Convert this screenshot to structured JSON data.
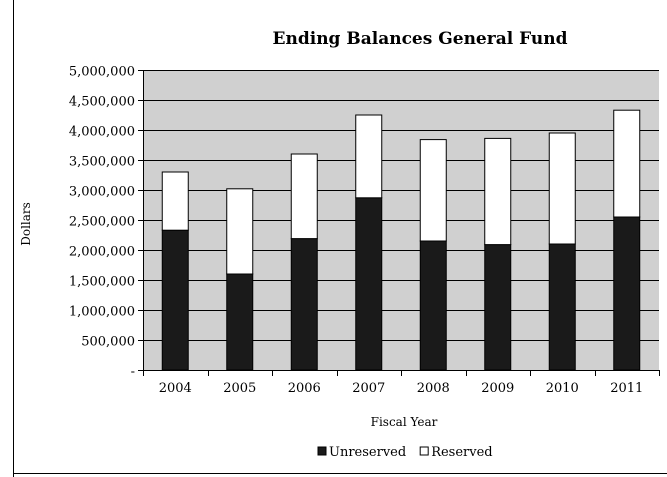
{
  "chart_data": {
    "type": "bar",
    "stacked": true,
    "title": "Ending Balances General Fund",
    "xlabel": "Fiscal Year",
    "ylabel": "Dollars",
    "categories": [
      "2004",
      "2005",
      "2006",
      "2007",
      "2008",
      "2009",
      "2010",
      "2011"
    ],
    "series": [
      {
        "name": "Unreserved",
        "color": "#1a1a1a",
        "values": [
          2330000,
          1600000,
          2190000,
          2870000,
          2150000,
          2090000,
          2100000,
          2550000
        ]
      },
      {
        "name": "Reserved",
        "color": "#ffffff",
        "values": [
          970000,
          1420000,
          1410000,
          1380000,
          1690000,
          1770000,
          1850000,
          1780000
        ]
      }
    ],
    "ylim": [
      0,
      5000000
    ],
    "yticks": [
      0,
      500000,
      1000000,
      1500000,
      2000000,
      2500000,
      3000000,
      3500000,
      4000000,
      4500000,
      5000000
    ],
    "ytick_labels": [
      "-",
      "500,000",
      "1,000,000",
      "1,500,000",
      "2,000,000",
      "2,500,000",
      "3,000,000",
      "3,500,000",
      "4,000,000",
      "4,500,000",
      "5,000,000"
    ],
    "grid": true,
    "plot_background": "#d0d0d0",
    "legend_position": "bottom"
  }
}
